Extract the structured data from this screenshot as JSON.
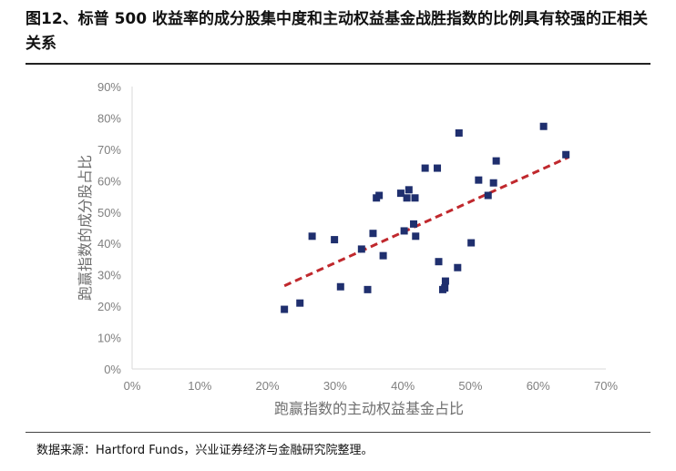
{
  "header": {
    "title": "图12、标普 500 收益率的成分股集中度和主动权益基金战胜指数的比例具有较强的正相关关系"
  },
  "footer": {
    "source": "数据来源：Hartford Funds，兴业证券经济与金融研究院整理。"
  },
  "chart_data": {
    "type": "scatter",
    "title": "",
    "xlabel": "跑赢指数的主动权益基金占比",
    "ylabel": "跑赢指数的成分股占比",
    "xlim": [
      0,
      70
    ],
    "ylim": [
      0,
      90
    ],
    "x_ticks": [
      "0%",
      "10%",
      "20%",
      "30%",
      "40%",
      "50%",
      "60%",
      "70%"
    ],
    "y_ticks": [
      "0%",
      "10%",
      "20%",
      "30%",
      "40%",
      "50%",
      "60%",
      "70%",
      "80%",
      "90%"
    ],
    "grid": false,
    "marker_color": "#1f2f6e",
    "trendline": {
      "style": "dashed",
      "color": "#c0282d",
      "x": [
        22.5,
        64.5
      ],
      "y": [
        26.5,
        67.5
      ]
    },
    "points": [
      {
        "x": 22.5,
        "y": 19
      },
      {
        "x": 24.8,
        "y": 21
      },
      {
        "x": 26.6,
        "y": 42.3
      },
      {
        "x": 29.9,
        "y": 41.2
      },
      {
        "x": 30.8,
        "y": 26.2
      },
      {
        "x": 33.9,
        "y": 38.2
      },
      {
        "x": 34.8,
        "y": 25.3
      },
      {
        "x": 35.6,
        "y": 43.2
      },
      {
        "x": 36.1,
        "y": 54.5
      },
      {
        "x": 36.5,
        "y": 55.3
      },
      {
        "x": 37.1,
        "y": 36.1
      },
      {
        "x": 39.7,
        "y": 56
      },
      {
        "x": 40.2,
        "y": 44
      },
      {
        "x": 40.6,
        "y": 54.5
      },
      {
        "x": 40.9,
        "y": 57.1
      },
      {
        "x": 41.6,
        "y": 46.2
      },
      {
        "x": 41.8,
        "y": 54.5
      },
      {
        "x": 41.9,
        "y": 42.3
      },
      {
        "x": 43.3,
        "y": 64
      },
      {
        "x": 45.1,
        "y": 64
      },
      {
        "x": 45.3,
        "y": 34.2
      },
      {
        "x": 45.9,
        "y": 25.3
      },
      {
        "x": 46.2,
        "y": 25.8
      },
      {
        "x": 46.3,
        "y": 28
      },
      {
        "x": 48.1,
        "y": 32.3
      },
      {
        "x": 48.3,
        "y": 75.2
      },
      {
        "x": 50.1,
        "y": 40.2
      },
      {
        "x": 51.2,
        "y": 60.2
      },
      {
        "x": 52.6,
        "y": 55.3
      },
      {
        "x": 53.4,
        "y": 59.3
      },
      {
        "x": 53.8,
        "y": 66.3
      },
      {
        "x": 60.8,
        "y": 77.3
      },
      {
        "x": 64.1,
        "y": 68.3
      }
    ]
  }
}
